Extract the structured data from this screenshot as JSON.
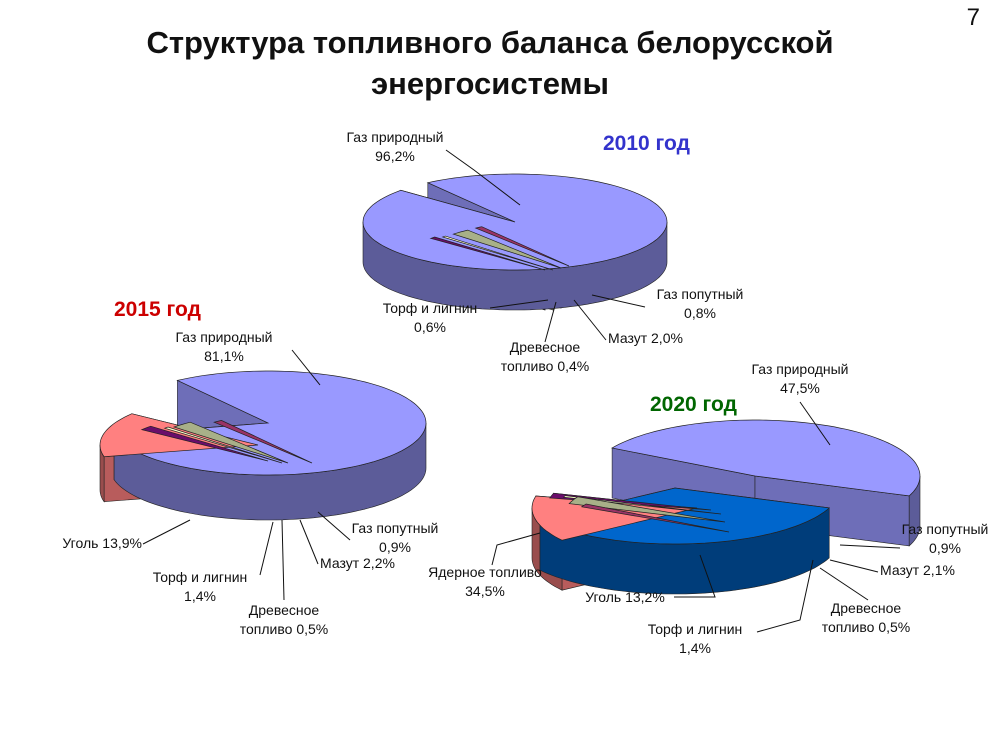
{
  "slide": {
    "title_line1": "Структура топливного баланса белорусской",
    "title_line2": "энергосистемы",
    "page_number": "7"
  },
  "colors": {
    "gas_natural": "#9999FF",
    "coal": "#FF8080",
    "peat": "#6A0D6A",
    "wood": "#FFFFCC",
    "mazut": "#A8B088",
    "gas_associated": "#993366",
    "nuclear": "#0066CC"
  },
  "chart_data": [
    {
      "type": "pie",
      "title": "2010 год",
      "title_color": "#3333CC",
      "series": [
        {
          "name": "Газ природный",
          "value": 96.2,
          "label_lines": [
            "Газ природный",
            "96,2%"
          ]
        },
        {
          "name": "Торф и лигнин",
          "value": 0.6,
          "label_lines": [
            "Торф и лигнин",
            "0,6%"
          ]
        },
        {
          "name": "Древесное топливо",
          "value": 0.4,
          "label_lines": [
            "Древесное",
            "топливо 0,4%"
          ]
        },
        {
          "name": "Мазут",
          "value": 2.0,
          "label_lines": [
            "Мазут 2,0%"
          ]
        },
        {
          "name": "Газ попутный",
          "value": 0.8,
          "label_lines": [
            "Газ попутный",
            "0,8%"
          ]
        }
      ]
    },
    {
      "type": "pie",
      "title": "2015 год",
      "title_color": "#CC0000",
      "series": [
        {
          "name": "Газ природный",
          "value": 81.1,
          "label_lines": [
            "Газ природный",
            "81,1%"
          ]
        },
        {
          "name": "Уголь",
          "value": 13.9,
          "label_lines": [
            "Уголь 13,9%"
          ]
        },
        {
          "name": "Торф и лигнин",
          "value": 1.4,
          "label_lines": [
            "Торф и лигнин",
            "1,4%"
          ]
        },
        {
          "name": "Древесное топливо",
          "value": 0.5,
          "label_lines": [
            "Древесное",
            "топливо 0,5%"
          ]
        },
        {
          "name": "Мазут",
          "value": 2.2,
          "label_lines": [
            "Мазут 2,2%"
          ]
        },
        {
          "name": "Газ попутный",
          "value": 0.9,
          "label_lines": [
            "Газ попутный",
            "0,9%"
          ]
        }
      ]
    },
    {
      "type": "pie",
      "title": "2020 год",
      "title_color": "#006600",
      "series": [
        {
          "name": "Газ природный",
          "value": 47.5,
          "label_lines": [
            "Газ природный",
            "47,5%"
          ]
        },
        {
          "name": "Ядерное топливо",
          "value": 34.5,
          "label_lines": [
            "Ядерное топливо",
            "34,5%"
          ]
        },
        {
          "name": "Уголь",
          "value": 13.2,
          "label_lines": [
            "Уголь 13,2%"
          ]
        },
        {
          "name": "Торф и лигнин",
          "value": 1.4,
          "label_lines": [
            "Торф и лигнин",
            "1,4%"
          ]
        },
        {
          "name": "Древесное топливо",
          "value": 0.5,
          "label_lines": [
            "Древесное",
            "топливо 0,5%"
          ]
        },
        {
          "name": "Мазут",
          "value": 2.1,
          "label_lines": [
            "Мазут 2,1%"
          ]
        },
        {
          "name": "Газ попутный",
          "value": 0.9,
          "label_lines": [
            "Газ попутный",
            "0,9%"
          ]
        }
      ]
    }
  ]
}
